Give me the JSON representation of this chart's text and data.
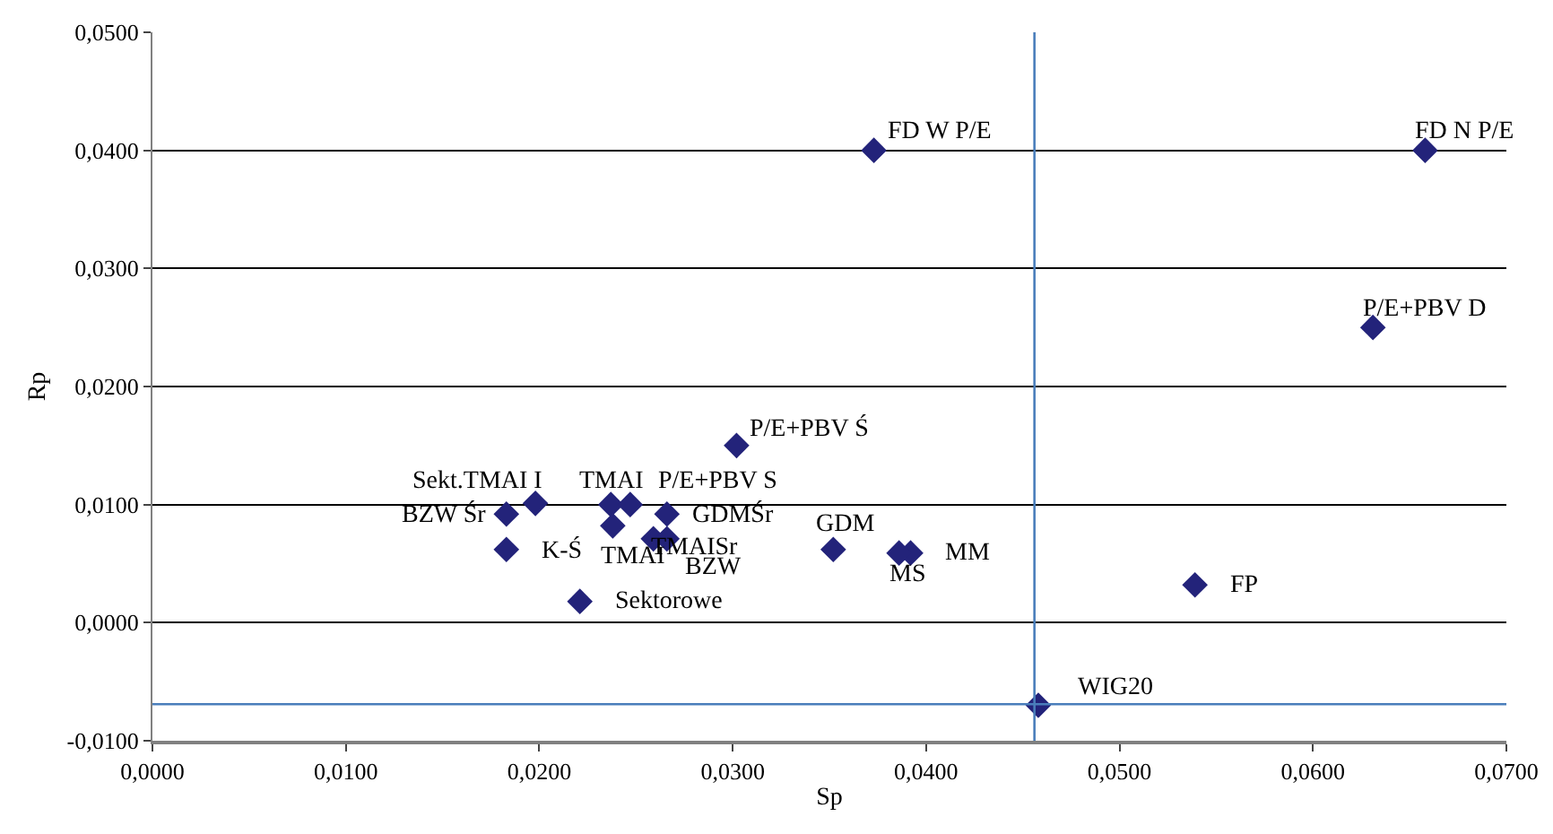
{
  "chart_data": {
    "type": "scatter",
    "xlabel": "Sp",
    "ylabel": "Rp",
    "x": [
      0.0373,
      0.0658,
      0.0631,
      0.0302,
      0.0198,
      0.0183,
      0.0183,
      0.0237,
      0.0247,
      0.0238,
      0.0266,
      0.0259,
      0.0266,
      0.0221,
      0.0352,
      0.0392,
      0.0386,
      0.0539,
      0.0458
    ],
    "values": [
      0.04,
      0.04,
      0.025,
      0.015,
      0.0101,
      0.0092,
      0.0062,
      0.01,
      0.01,
      0.0082,
      0.0092,
      0.0071,
      0.0071,
      0.0018,
      0.0062,
      0.0059,
      0.0059,
      0.0032,
      -0.007
    ],
    "color": "#23237a",
    "marker": "diamond",
    "annotations": [
      {
        "text": "FD W P/E",
        "x": 0.0373,
        "y": 0.04
      },
      {
        "text": "FD N P/E",
        "x": 0.0658,
        "y": 0.04
      },
      {
        "text": "P/E+PBV D",
        "x": 0.0631,
        "y": 0.025
      },
      {
        "text": "P/E+PBV Ś",
        "x": 0.0302,
        "y": 0.015
      },
      {
        "text": "Sekt.TMAI I",
        "x": 0.0198,
        "y": 0.0101
      },
      {
        "text": "BZW Śr",
        "x": 0.0183,
        "y": 0.0092
      },
      {
        "text": "K-Ś",
        "x": 0.0183,
        "y": 0.0062
      },
      {
        "text": "TMAI",
        "x": 0.0237,
        "y": 0.01
      },
      {
        "text": "P/E+PBV S",
        "x": 0.0247,
        "y": 0.01
      },
      {
        "text": "TMAI",
        "x": 0.0238,
        "y": 0.0082
      },
      {
        "text": "GDMŚr",
        "x": 0.0266,
        "y": 0.0092
      },
      {
        "text": "TMAISr",
        "x": 0.0259,
        "y": 0.0071
      },
      {
        "text": "BZW",
        "x": 0.0266,
        "y": 0.0071
      },
      {
        "text": "Sektorowe",
        "x": 0.0221,
        "y": 0.0018
      },
      {
        "text": "GDM",
        "x": 0.0352,
        "y": 0.0062
      },
      {
        "text": "MM",
        "x": 0.0392,
        "y": 0.0059
      },
      {
        "text": "MS",
        "x": 0.0386,
        "y": 0.0059
      },
      {
        "text": "FP",
        "x": 0.0539,
        "y": 0.0032
      },
      {
        "text": "WIG20",
        "x": 0.0458,
        "y": -0.007
      }
    ],
    "ref_lines": [
      {
        "axis": "x",
        "value": 0.0456,
        "color": "#4a7ebb"
      },
      {
        "axis": "y",
        "value": -0.0069,
        "color": "#4a7ebb"
      }
    ],
    "xlim": [
      0,
      0.07
    ],
    "ylim": [
      -0.01,
      0.05
    ],
    "xticks": [
      {
        "value": 0,
        "label": "0,0000"
      },
      {
        "value": 0.01,
        "label": "0,0100"
      },
      {
        "value": 0.02,
        "label": "0,0200"
      },
      {
        "value": 0.03,
        "label": "0,0300"
      },
      {
        "value": 0.04,
        "label": "0,0400"
      },
      {
        "value": 0.05,
        "label": "0,0500"
      },
      {
        "value": 0.06,
        "label": "0,0600"
      },
      {
        "value": 0.07,
        "label": "0,0700"
      }
    ],
    "yticks": [
      {
        "value": -0.01,
        "label": "-0,0100"
      },
      {
        "value": 0,
        "label": "0,0000"
      },
      {
        "value": 0.01,
        "label": "0,0100"
      },
      {
        "value": 0.02,
        "label": "0,0200"
      },
      {
        "value": 0.03,
        "label": "0,0300"
      },
      {
        "value": 0.04,
        "label": "0,0400"
      },
      {
        "value": 0.05,
        "label": "0,0500"
      }
    ],
    "grid": "y"
  }
}
